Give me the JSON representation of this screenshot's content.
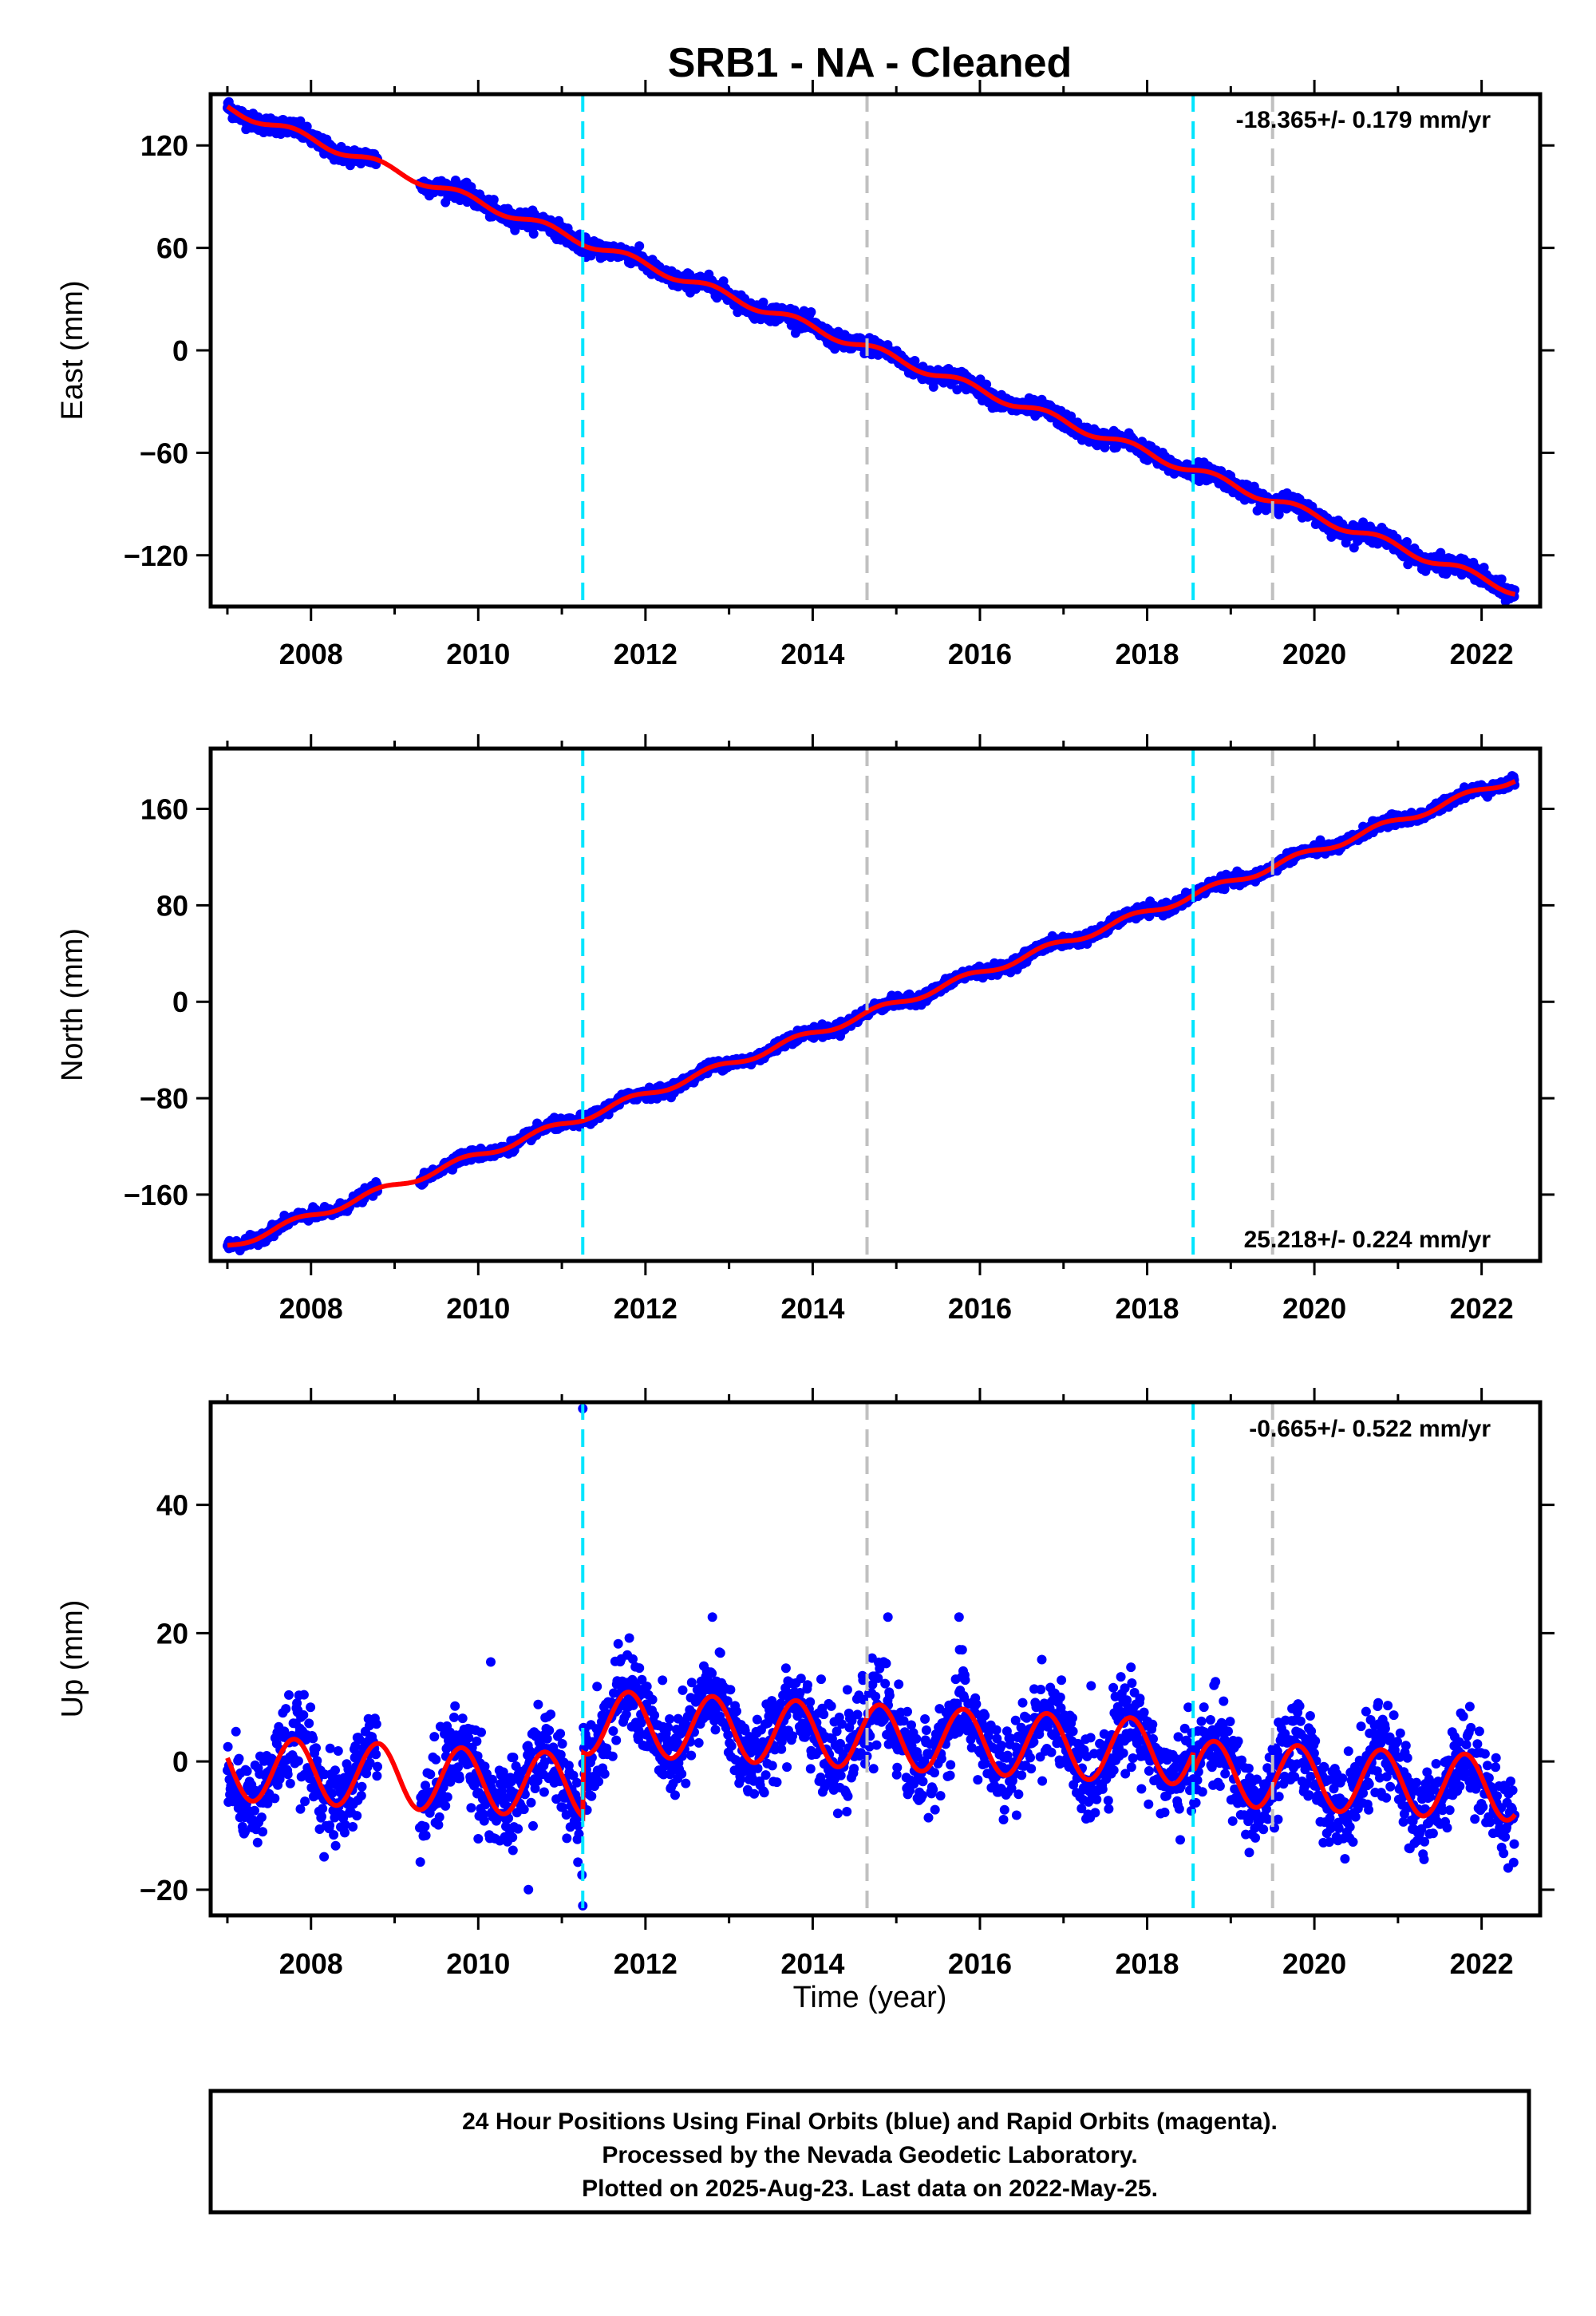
{
  "figure": {
    "title": "SRB1  - NA - Cleaned",
    "xlabel": "Time (year)",
    "footer": [
      "24 Hour Positions Using Final Orbits (blue) and Rapid Orbits (magenta).",
      "Processed by the Nevada Geodetic Laboratory.",
      "Plotted on 2025-Aug-23. Last data on 2022-May-25."
    ],
    "colors": {
      "data": "#0000ff",
      "model": "#ff0000",
      "equipment_change": "#00e5ff",
      "earthquake": "#c0c0c0",
      "frame": "#000000"
    }
  },
  "chart_data": [
    {
      "type": "scatter",
      "name": "east",
      "ylabel": "East (mm)",
      "rate": "-18.365+/- 0.179 mm/yr",
      "xlim": [
        2006.8,
        2022.7
      ],
      "ylim": [
        -150,
        150
      ],
      "x_ticks": [
        2008,
        2010,
        2012,
        2014,
        2016,
        2018,
        2020,
        2022
      ],
      "y_ticks": [
        -120,
        -60,
        0,
        60,
        120
      ],
      "x_range": [
        2007.0,
        2022.4
      ],
      "trend": {
        "x0": 2007.0,
        "y0": 142,
        "slope": -18.365
      },
      "annual_amplitude": 2.5,
      "scatter": 2.4,
      "gap": [
        2008.8,
        2009.3
      ],
      "cyan_lines": [
        2011.25,
        2018.55
      ],
      "gray_lines": [
        2014.65,
        2019.5
      ]
    },
    {
      "type": "scatter",
      "name": "north",
      "ylabel": "North (mm)",
      "rate": "25.218+/- 0.224 mm/yr",
      "xlim": [
        2006.8,
        2022.7
      ],
      "ylim": [
        -215,
        210
      ],
      "x_ticks": [
        2008,
        2010,
        2012,
        2014,
        2016,
        2018,
        2020,
        2022
      ],
      "y_ticks": [
        -160,
        -80,
        0,
        80,
        160
      ],
      "x_range": [
        2007.0,
        2022.4
      ],
      "trend": {
        "x0": 2007.0,
        "y0": -203,
        "slope": 25.218
      },
      "annual_amplitude": 3.0,
      "scatter": 2.2,
      "gap": [
        2008.8,
        2009.3
      ],
      "cyan_lines": [
        2011.25,
        2018.55
      ],
      "gray_lines": [
        2014.65,
        2019.5
      ]
    },
    {
      "type": "scatter",
      "name": "up",
      "ylabel": "Up (mm)",
      "rate": "-0.665+/- 0.522 mm/yr",
      "xlim": [
        2006.8,
        2022.7
      ],
      "ylim": [
        -24,
        56
      ],
      "x_ticks": [
        2008,
        2010,
        2012,
        2014,
        2016,
        2018,
        2020,
        2022
      ],
      "y_ticks": [
        -20,
        0,
        20,
        40
      ],
      "x_range": [
        2007.0,
        2022.4
      ],
      "trend": {
        "x0": 2007.0,
        "y0": -1.0,
        "slope": -0.665
      },
      "annual_amplitude": 5.0,
      "scatter": 3.4,
      "gap": [
        2008.8,
        2009.3
      ],
      "offsets": [
        {
          "x": 2011.25,
          "dy": 10.0
        },
        {
          "x": 2018.55,
          "dy": -3.0
        }
      ],
      "outliers": [
        [
          2011.25,
          55
        ],
        [
          2011.25,
          -22.5
        ],
        [
          2010.15,
          15.5
        ],
        [
          2012.8,
          22.5
        ],
        [
          2014.9,
          22.5
        ],
        [
          2015.75,
          22.5
        ],
        [
          2010.6,
          -20
        ]
      ],
      "cyan_lines": [
        2011.25,
        2018.55
      ],
      "gray_lines": [
        2014.65,
        2019.5
      ]
    }
  ]
}
